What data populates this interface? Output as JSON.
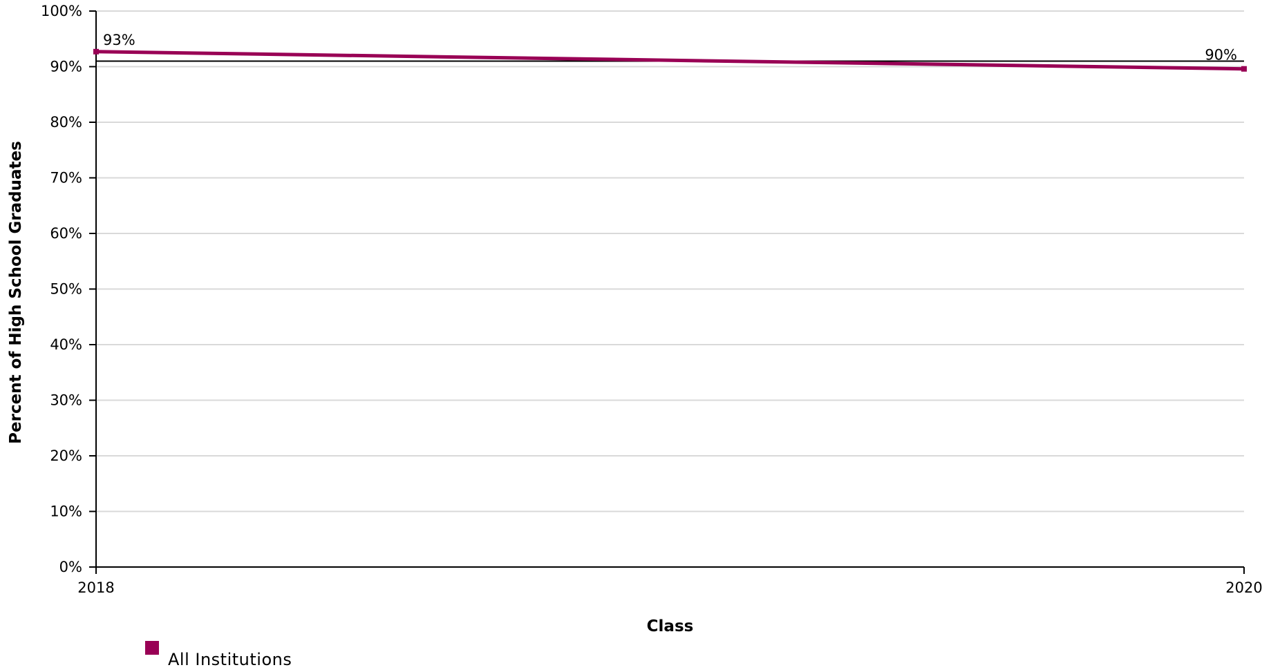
{
  "chart_data": {
    "type": "line",
    "title": "",
    "xlabel": "Class",
    "ylabel": "Percent of High School Graduates",
    "x": [
      "2018",
      "2020"
    ],
    "x_tick_labels": [
      "2018",
      "2020"
    ],
    "ylim": [
      0,
      100
    ],
    "y_ticks": [
      0,
      10,
      20,
      30,
      40,
      50,
      60,
      70,
      80,
      90,
      100
    ],
    "y_tick_labels": [
      "0%",
      "10%",
      "20%",
      "30%",
      "40%",
      "50%",
      "60%",
      "70%",
      "80%",
      "90%",
      "100%"
    ],
    "grid": true,
    "legend_position": "bottom-left",
    "series": [
      {
        "name": "All Institutions",
        "values": [
          92.7,
          89.6
        ],
        "data_labels": [
          "93%",
          "90%"
        ],
        "color": "#990055"
      }
    ],
    "reference_line": {
      "value": 91,
      "color": "#000000"
    }
  },
  "colors": {
    "grid": "#d9d9d9",
    "axis": "#000000"
  }
}
